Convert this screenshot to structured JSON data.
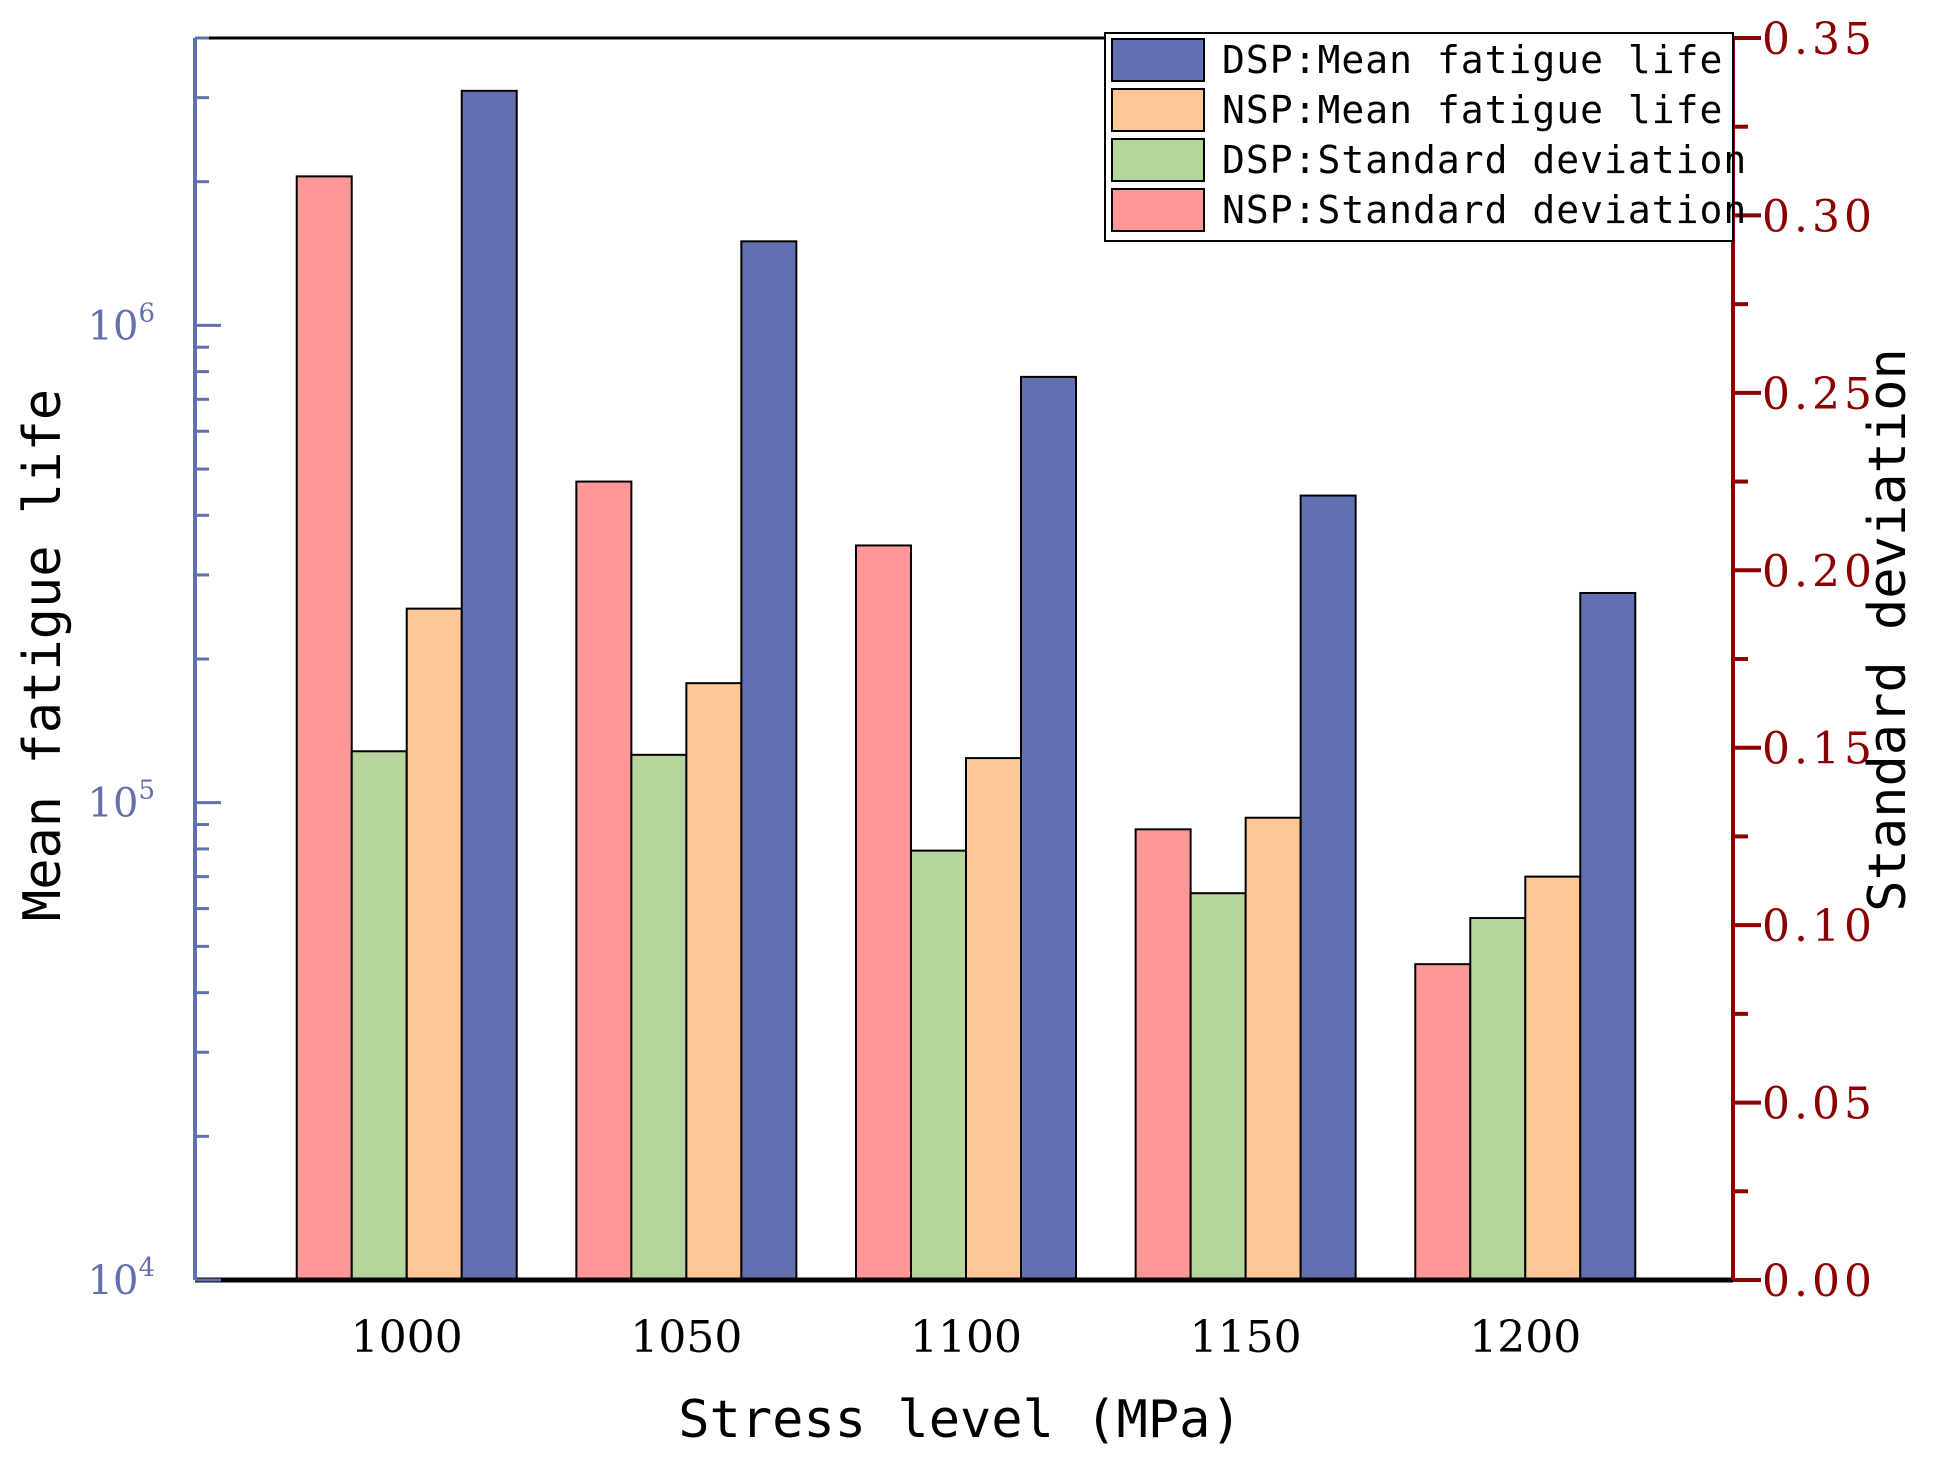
{
  "chart_data": {
    "type": "bar",
    "xlabel": "Stress level (MPa)",
    "categories": [
      "1000",
      "1050",
      "1100",
      "1150",
      "1200"
    ],
    "left_axis": {
      "label": "Mean fatigue life",
      "scale": "log",
      "range": [
        10000,
        4000000
      ],
      "tick_values": [
        10000,
        100000,
        1000000
      ],
      "tick_labels": [
        {
          "base": "10",
          "exp": "4"
        },
        {
          "base": "10",
          "exp": "5"
        },
        {
          "base": "10",
          "exp": "6"
        }
      ],
      "color": "#6270b0"
    },
    "right_axis": {
      "label": "Standard deviation",
      "scale": "linear",
      "range": [
        0,
        0.35
      ],
      "tick_labels": [
        "0.00",
        "0.05",
        "0.10",
        "0.15",
        "0.20",
        "0.25",
        "0.30",
        "0.35"
      ],
      "color": "#8b0000"
    },
    "series": [
      {
        "name": "NSP:Standard deviation",
        "axis": "right",
        "color": "#fe9898",
        "values": [
          0.311,
          0.225,
          0.207,
          0.127,
          0.089
        ]
      },
      {
        "name": "DSP:Standard deviation",
        "axis": "right",
        "color": "#b5d59c",
        "values": [
          0.149,
          0.148,
          0.121,
          0.109,
          0.102
        ]
      },
      {
        "name": "NSP:Mean fatigue life",
        "axis": "left",
        "color": "#fdc796",
        "values": [
          255000,
          178000,
          124000,
          93000,
          70000
        ]
      },
      {
        "name": "DSP:Mean fatigue life",
        "axis": "left",
        "color": "#6270b2",
        "values": [
          3100000,
          1500000,
          780000,
          440000,
          275000
        ]
      }
    ],
    "legend": {
      "position": "top-right",
      "order": [
        "DSP:Mean fatigue life",
        "NSP:Mean fatigue life",
        "DSP:Standard deviation",
        "NSP:Standard deviation"
      ]
    }
  }
}
